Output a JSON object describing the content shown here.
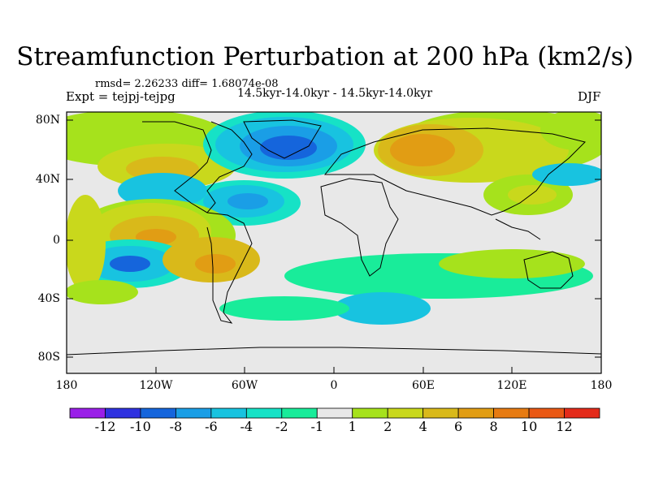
{
  "title": "Streamfunction Perturbation at 200 hPa (km2/s)",
  "stats_line": "rmsd= 2.26233 diff= 1.68074e-08",
  "experiment_line": "Expt = tejpj-tejpg",
  "period_line": "14.5kyr-14.0kyr - 14.5kyr-14.0kyr",
  "season": "DJF",
  "map": {
    "projection": "cylindrical equidistant",
    "lon_range": [
      -180,
      180
    ],
    "lat_range": [
      -90,
      90
    ],
    "lat_ticks": [
      "80N",
      "40N",
      "0",
      "40S",
      "80S"
    ],
    "lon_ticks": [
      "180",
      "120W",
      "60W",
      "0",
      "60E",
      "120E",
      "180"
    ]
  },
  "colorbar": {
    "colors": [
      "#9a1fe8",
      "#2f32e0",
      "#1565dc",
      "#1a9ee6",
      "#18c3e0",
      "#16e2c6",
      "#19ec9a",
      "#e8e8e8",
      "#a6e21c",
      "#c9d81c",
      "#d9b91a",
      "#e19d14",
      "#e77b12",
      "#e95814",
      "#e42b1a"
    ],
    "labels": [
      "-12",
      "-10",
      "-8",
      "-6",
      "-4",
      "-2",
      "-1",
      "1",
      "2",
      "4",
      "6",
      "8",
      "10",
      "12"
    ]
  }
}
